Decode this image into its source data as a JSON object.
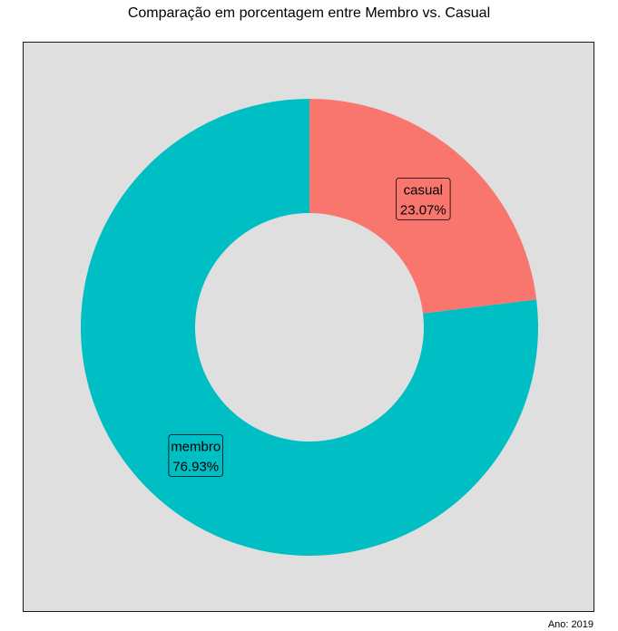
{
  "chart_data": {
    "type": "pie",
    "variant": "donut",
    "title": "Comparação em porcentagem entre Membro vs. Casual",
    "caption": "Ano: 2019",
    "legend": "none",
    "grid": false,
    "categories": [
      "casual",
      "membro"
    ],
    "values": [
      23.07,
      76.93
    ],
    "labels": [
      "23.07%",
      "76.93%"
    ],
    "colors": [
      "#F8766D",
      "#00BFC4"
    ],
    "background": "#DFDFDF"
  }
}
